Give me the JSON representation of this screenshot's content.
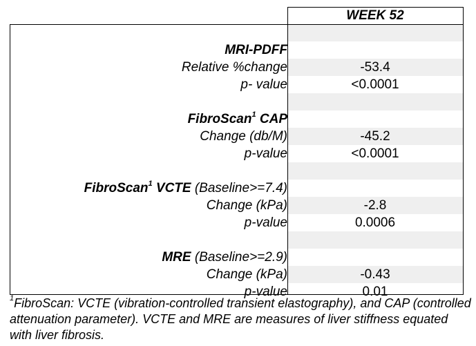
{
  "header": {
    "column_title": "WEEK 52"
  },
  "sections": [
    {
      "title": "MRI-PDFF",
      "title_sup": "",
      "title_suffix": "",
      "rows": [
        {
          "label": "Relative %change",
          "value": "-53.4"
        },
        {
          "label": "p- value",
          "value": "<0.0001"
        }
      ]
    },
    {
      "title": "FibroScan",
      "title_sup": "1",
      "title_suffix": " CAP",
      "rows": [
        {
          "label": "Change (db/M)",
          "value": "-45.2"
        },
        {
          "label": "p-value",
          "value": "<0.0001"
        }
      ]
    },
    {
      "title": "FibroScan",
      "title_sup": "1",
      "title_suffix": " VCTE",
      "title_extra": " (Baseline>=7.4)",
      "rows": [
        {
          "label": "Change (kPa)",
          "value": "-2.8"
        },
        {
          "label": "p-value",
          "value": "0.0006"
        }
      ]
    },
    {
      "title": "MRE",
      "title_sup": "",
      "title_suffix": "",
      "title_extra": " (Baseline>=2.9)",
      "rows": [
        {
          "label": "Change (kPa)",
          "value": "-0.43"
        },
        {
          "label": "p-value",
          "value": "0.01"
        }
      ]
    }
  ],
  "footnote": {
    "sup": "1",
    "text": "FibroScan: VCTE (vibration-controlled transient elastography), and CAP (controlled attenuation parameter). VCTE and MRE are measures of liver stiffness equated with liver fibrosis."
  }
}
